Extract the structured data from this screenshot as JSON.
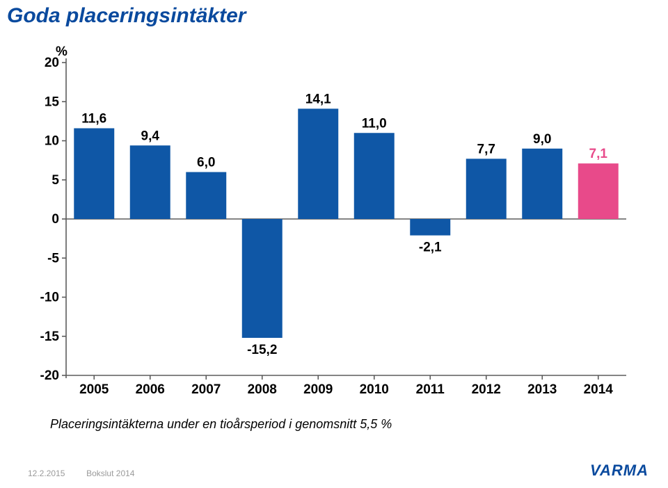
{
  "title": "Goda placeringsintäkter",
  "subtitle": "Placeringsintäkterna under en tioårsperiod i genomsnitt 5,5 %",
  "footer": {
    "date": "12.2.2015",
    "doc": "Bokslut 2014"
  },
  "logo": "VARMA",
  "chart": {
    "type": "bar",
    "y_axis_title": "%",
    "categories": [
      "2005",
      "2006",
      "2007",
      "2008",
      "2009",
      "2010",
      "2011",
      "2012",
      "2013",
      "2014"
    ],
    "values": [
      11.6,
      9.4,
      6.0,
      -15.2,
      14.1,
      11.0,
      -2.1,
      7.7,
      9.0,
      7.1
    ],
    "value_labels": [
      "11,6",
      "9,4",
      "6,0",
      "-15,2",
      "14,1",
      "11,0",
      "-2,1",
      "7,7",
      "9,0",
      "7,1"
    ],
    "bar_colors": [
      "#0f57a6",
      "#0f57a6",
      "#0f57a6",
      "#0f57a6",
      "#0f57a6",
      "#0f57a6",
      "#0f57a6",
      "#0f57a6",
      "#0f57a6",
      "#e84a8a"
    ],
    "ylim": [
      -20,
      20
    ],
    "ytick_step": 5,
    "yticks_labels": [
      "20",
      "15",
      "10",
      "5",
      "0",
      "-5",
      "-10",
      "-15",
      "-20"
    ],
    "axis_color": "#5b5b5b",
    "tick_label_color": "#000000",
    "value_label_color": "#000000",
    "highlight_label_color": "#e84a8a",
    "value_label_fontsize": 19,
    "tick_label_fontsize": 19,
    "title_fontsize": 19,
    "bar_width": 0.72,
    "background_color": "#ffffff"
  }
}
